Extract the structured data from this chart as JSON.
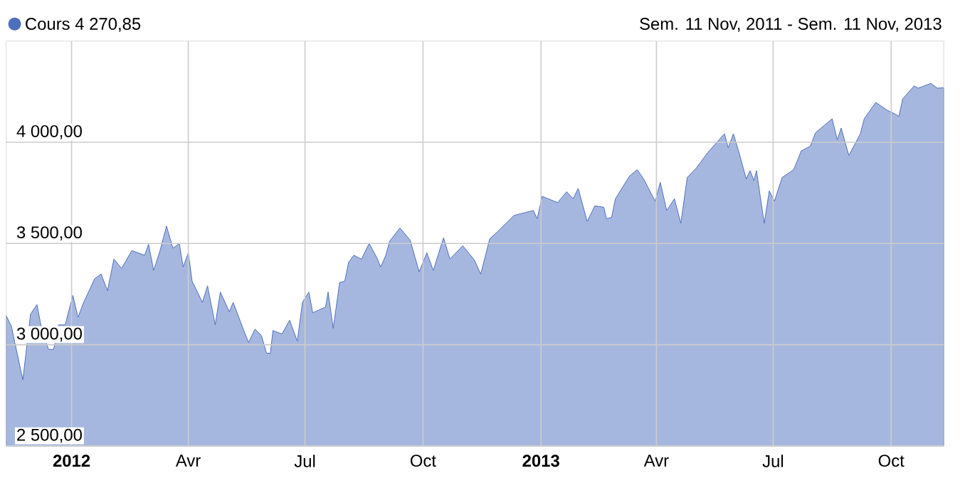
{
  "chart_data": {
    "type": "area",
    "subtitle": "Sem. 11 Nov, 2011 - Sem. 11 Nov, 2013",
    "legend": "top left",
    "grid": true,
    "xlim": [
      "2011-11-11",
      "2013-11-11"
    ],
    "ylim": [
      2500,
      4500
    ],
    "xticks": [
      {
        "value": "2012-01-01",
        "label": "**2012**"
      },
      {
        "value": "2012-04-01",
        "label": "Avr"
      },
      {
        "value": "2012-07-01",
        "label": "Jul"
      },
      {
        "value": "2012-10-01",
        "label": "Oct"
      },
      {
        "value": "2013-01-01",
        "label": "**2013**"
      },
      {
        "value": "2013-04-01",
        "label": "Avr"
      },
      {
        "value": "2013-07-01",
        "label": "Jul"
      },
      {
        "value": "2013-10-01",
        "label": "Oct"
      }
    ],
    "yticks": [
      {
        "value": 2500,
        "label": "2 500,00"
      },
      {
        "value": 3000,
        "label": "3 000,00"
      },
      {
        "value": 3500,
        "label": "3 500,00"
      },
      {
        "value": 4000,
        "label": "4 000,00"
      }
    ],
    "x": [
      "2011-11-11",
      "2011-11-15",
      "2011-11-24",
      "2011-11-30",
      "2011-12-05",
      "2011-12-08",
      "2011-12-14",
      "2011-12-18",
      "2011-12-22",
      "2011-12-27",
      "2012-01-02",
      "2012-01-06",
      "2012-01-10",
      "2012-01-19",
      "2012-01-24",
      "2012-01-29",
      "2012-02-03",
      "2012-02-09",
      "2012-02-17",
      "2012-02-27",
      "2012-03-01",
      "2012-03-05",
      "2012-03-10",
      "2012-03-15",
      "2012-03-20",
      "2012-03-25",
      "2012-03-28",
      "2012-04-01",
      "2012-04-04",
      "2012-04-12",
      "2012-04-16",
      "2012-04-22",
      "2012-04-26",
      "2012-05-03",
      "2012-05-06",
      "2012-05-15",
      "2012-05-18",
      "2012-05-23",
      "2012-05-28",
      "2012-06-01",
      "2012-06-04",
      "2012-06-06",
      "2012-06-13",
      "2012-06-19",
      "2012-06-25",
      "2012-06-29",
      "2012-07-04",
      "2012-07-07",
      "2012-07-17",
      "2012-07-19",
      "2012-07-23",
      "2012-07-28",
      "2012-08-01",
      "2012-08-04",
      "2012-08-08",
      "2012-08-14",
      "2012-08-20",
      "2012-08-26",
      "2012-08-29",
      "2012-09-02",
      "2012-09-05",
      "2012-09-13",
      "2012-09-21",
      "2012-09-28",
      "2012-10-04",
      "2012-10-09",
      "2012-10-17",
      "2012-10-22",
      "2012-11-01",
      "2012-11-10",
      "2012-11-15",
      "2012-11-22",
      "2012-11-28",
      "2012-12-11",
      "2012-12-26",
      "2012-12-29",
      "2013-01-02",
      "2013-01-14",
      "2013-01-21",
      "2013-01-26",
      "2013-01-30",
      "2013-02-06",
      "2013-02-12",
      "2013-02-19",
      "2013-02-21",
      "2013-02-25",
      "2013-02-28",
      "2013-03-11",
      "2013-03-17",
      "2013-03-22",
      "2013-03-31",
      "2013-04-04",
      "2013-04-09",
      "2013-04-15",
      "2013-04-20",
      "2013-04-25",
      "2013-05-02",
      "2013-05-11",
      "2013-05-24",
      "2013-05-27",
      "2013-05-31",
      "2013-06-04",
      "2013-06-10",
      "2013-06-13",
      "2013-06-16",
      "2013-06-18",
      "2013-06-24",
      "2013-06-28",
      "2013-07-02",
      "2013-07-08",
      "2013-07-17",
      "2013-07-23",
      "2013-07-30",
      "2013-08-03",
      "2013-08-16",
      "2013-08-20",
      "2013-08-23",
      "2013-08-29",
      "2013-09-07",
      "2013-09-10",
      "2013-09-19",
      "2013-09-28",
      "2013-10-04",
      "2013-10-07",
      "2013-10-10",
      "2013-10-19",
      "2013-10-22",
      "2013-11-01",
      "2013-11-06",
      "2013-11-11"
    ],
    "series": [
      {
        "name": "Cours 4 270,85",
        "color": "#4e6fbf",
        "values": [
          3144,
          3093,
          2826,
          3151,
          3198,
          3100,
          2977,
          2977,
          3098,
          3098,
          3244,
          3135,
          3203,
          3326,
          3349,
          3267,
          3423,
          3377,
          3465,
          3442,
          3496,
          3367,
          3465,
          3586,
          3477,
          3500,
          3384,
          3454,
          3314,
          3209,
          3291,
          3098,
          3260,
          3163,
          3209,
          3058,
          3011,
          3077,
          3046,
          2958,
          2958,
          3070,
          3053,
          3121,
          3018,
          3209,
          3260,
          3158,
          3186,
          3260,
          3081,
          3307,
          3314,
          3407,
          3442,
          3423,
          3500,
          3430,
          3384,
          3442,
          3512,
          3577,
          3516,
          3360,
          3454,
          3367,
          3528,
          3423,
          3489,
          3419,
          3349,
          3523,
          3558,
          3639,
          3663,
          3623,
          3733,
          3702,
          3756,
          3721,
          3772,
          3609,
          3686,
          3679,
          3623,
          3628,
          3721,
          3833,
          3865,
          3819,
          3709,
          3802,
          3663,
          3721,
          3600,
          3826,
          3872,
          3949,
          4042,
          3972,
          4042,
          3958,
          3819,
          3860,
          3810,
          3860,
          3600,
          3760,
          3709,
          3826,
          3865,
          3958,
          3981,
          4047,
          4116,
          4012,
          4070,
          3935,
          4042,
          4116,
          4197,
          4158,
          4140,
          4128,
          4214,
          4279,
          4267,
          4291,
          4267,
          4270
        ]
      }
    ]
  }
}
